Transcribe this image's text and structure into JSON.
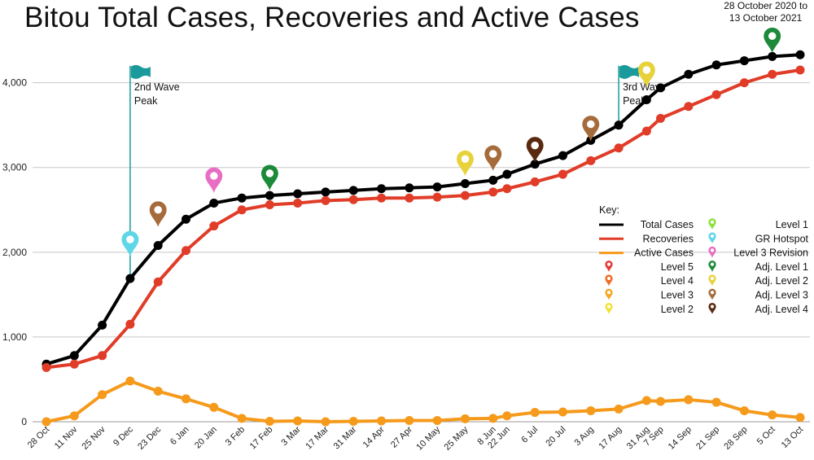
{
  "chart_data": {
    "type": "line",
    "title": "Bitou Total Cases, Recoveries and Active Cases",
    "subtitle_lines": [
      "28 October 2020 to",
      "13 October 2021"
    ],
    "categories": [
      "28 Oct",
      "11 Nov",
      "25 Nov",
      "9 Dec",
      "23 Dec",
      "6 Jan",
      "20 Jan",
      "3 Feb",
      "17 Feb",
      "3 Mar",
      "17 Mar",
      "31 Mar",
      "14 Apr",
      "27 Apr",
      "10 May",
      "25 May",
      "8 Jun",
      "22 Jun",
      "6 Jul",
      "20 Jul",
      "3 Aug",
      "17 Aug",
      "31 Aug",
      "7 Sep",
      "14 Sep",
      "21 Sep",
      "28 Sep",
      "5 Oct",
      "13 Oct"
    ],
    "x_positions": [
      0,
      14,
      28,
      42,
      56,
      70,
      84,
      98,
      112,
      126,
      140,
      154,
      168,
      182,
      196,
      210,
      224,
      231,
      245,
      259,
      273,
      287,
      301,
      308,
      322,
      336,
      350,
      364,
      378
    ],
    "series": [
      {
        "name": "Total Cases",
        "color": "#000000",
        "values": [
          680,
          780,
          1140,
          1690,
          2080,
          2390,
          2580,
          2640,
          2670,
          2690,
          2710,
          2730,
          2750,
          2760,
          2770,
          2810,
          2850,
          2920,
          3040,
          3140,
          3320,
          3500,
          3800,
          3940,
          4100,
          4210,
          4260,
          4310,
          4330
        ]
      },
      {
        "name": "Recoveries",
        "color": "#e03c28",
        "values": [
          640,
          680,
          780,
          1150,
          1650,
          2020,
          2310,
          2500,
          2560,
          2580,
          2610,
          2620,
          2640,
          2640,
          2650,
          2670,
          2710,
          2750,
          2830,
          2920,
          3080,
          3230,
          3430,
          3580,
          3720,
          3860,
          4000,
          4100,
          4150
        ]
      },
      {
        "name": "Active Cases",
        "color": "#f59a1b",
        "values": [
          0,
          70,
          320,
          480,
          360,
          270,
          170,
          40,
          5,
          10,
          0,
          5,
          10,
          15,
          15,
          35,
          40,
          70,
          110,
          115,
          130,
          150,
          250,
          240,
          260,
          230,
          130,
          80,
          50
        ]
      }
    ],
    "ylim": [
      0,
      4400
    ],
    "yticks": [
      0,
      1000,
      2000,
      3000,
      4000
    ],
    "ytick_labels": [
      "0",
      "1,000",
      "2,000",
      "3,000",
      "4,000"
    ],
    "grid": true,
    "wave_flags": [
      {
        "label_line1": "2nd Wave",
        "label_line2": "Peak",
        "x": 42,
        "top_value": 4200,
        "bottom_value": 1730,
        "color": "#1a9a9a"
      },
      {
        "label_line1": "3rd Wave",
        "label_line2": "Peak",
        "x": 287,
        "top_value": 4200,
        "bottom_value": 3450,
        "color": "#1a9a9a"
      }
    ],
    "pins": [
      {
        "level": "GR Hotspot",
        "x": 42,
        "value": 1950,
        "color": "#5fd6e8"
      },
      {
        "level": "Adj. Level 3",
        "x": 56,
        "value": 2300,
        "color": "#a66b3a"
      },
      {
        "level": "Level 3 Revision",
        "x": 84,
        "value": 2700,
        "color": "#e86ec4"
      },
      {
        "level": "Adj. Level 1",
        "x": 112,
        "value": 2730,
        "color": "#1d8a3a"
      },
      {
        "level": "Adj. Level 2",
        "x": 210,
        "value": 2900,
        "color": "#e8d23a"
      },
      {
        "level": "Adj. Level 3",
        "x": 224,
        "value": 2960,
        "color": "#a66b3a"
      },
      {
        "level": "Adj. Level 4",
        "x": 245,
        "value": 3060,
        "color": "#5a2a10"
      },
      {
        "level": "Adj. Level 3",
        "x": 273,
        "value": 3310,
        "color": "#a66b3a"
      },
      {
        "level": "Adj. Level 2",
        "x": 301,
        "value": 3950,
        "color": "#e8d23a"
      },
      {
        "level": "Adj. Level 1",
        "x": 364,
        "value": 4350,
        "color": "#1d8a3a"
      }
    ],
    "legend": {
      "title": "Key:",
      "placement": "right",
      "lines": [
        {
          "label": "Total Cases",
          "color": "#000000"
        },
        {
          "label": "Recoveries",
          "color": "#e03c28"
        },
        {
          "label": "Active Cases",
          "color": "#f59a1b"
        }
      ],
      "left_pins": [
        {
          "label": "Level 5",
          "color": "#e53935"
        },
        {
          "label": "Level 4",
          "color": "#f06a22"
        },
        {
          "label": "Level 3",
          "color": "#f5a623"
        },
        {
          "label": "Level 2",
          "color": "#f2e23a"
        }
      ],
      "right_pins": [
        {
          "label": "Level 1",
          "color": "#8be33a"
        },
        {
          "label": "GR Hotspot",
          "color": "#5fd6e8"
        },
        {
          "label": "Level 3 Revision",
          "color": "#e86ec4"
        },
        {
          "label": "Adj. Level 1",
          "color": "#1d8a3a"
        },
        {
          "label": "Adj. Level 2",
          "color": "#e8d23a"
        },
        {
          "label": "Adj. Level 3",
          "color": "#a66b3a"
        },
        {
          "label": "Adj. Level 4",
          "color": "#5a2a10"
        }
      ]
    }
  }
}
